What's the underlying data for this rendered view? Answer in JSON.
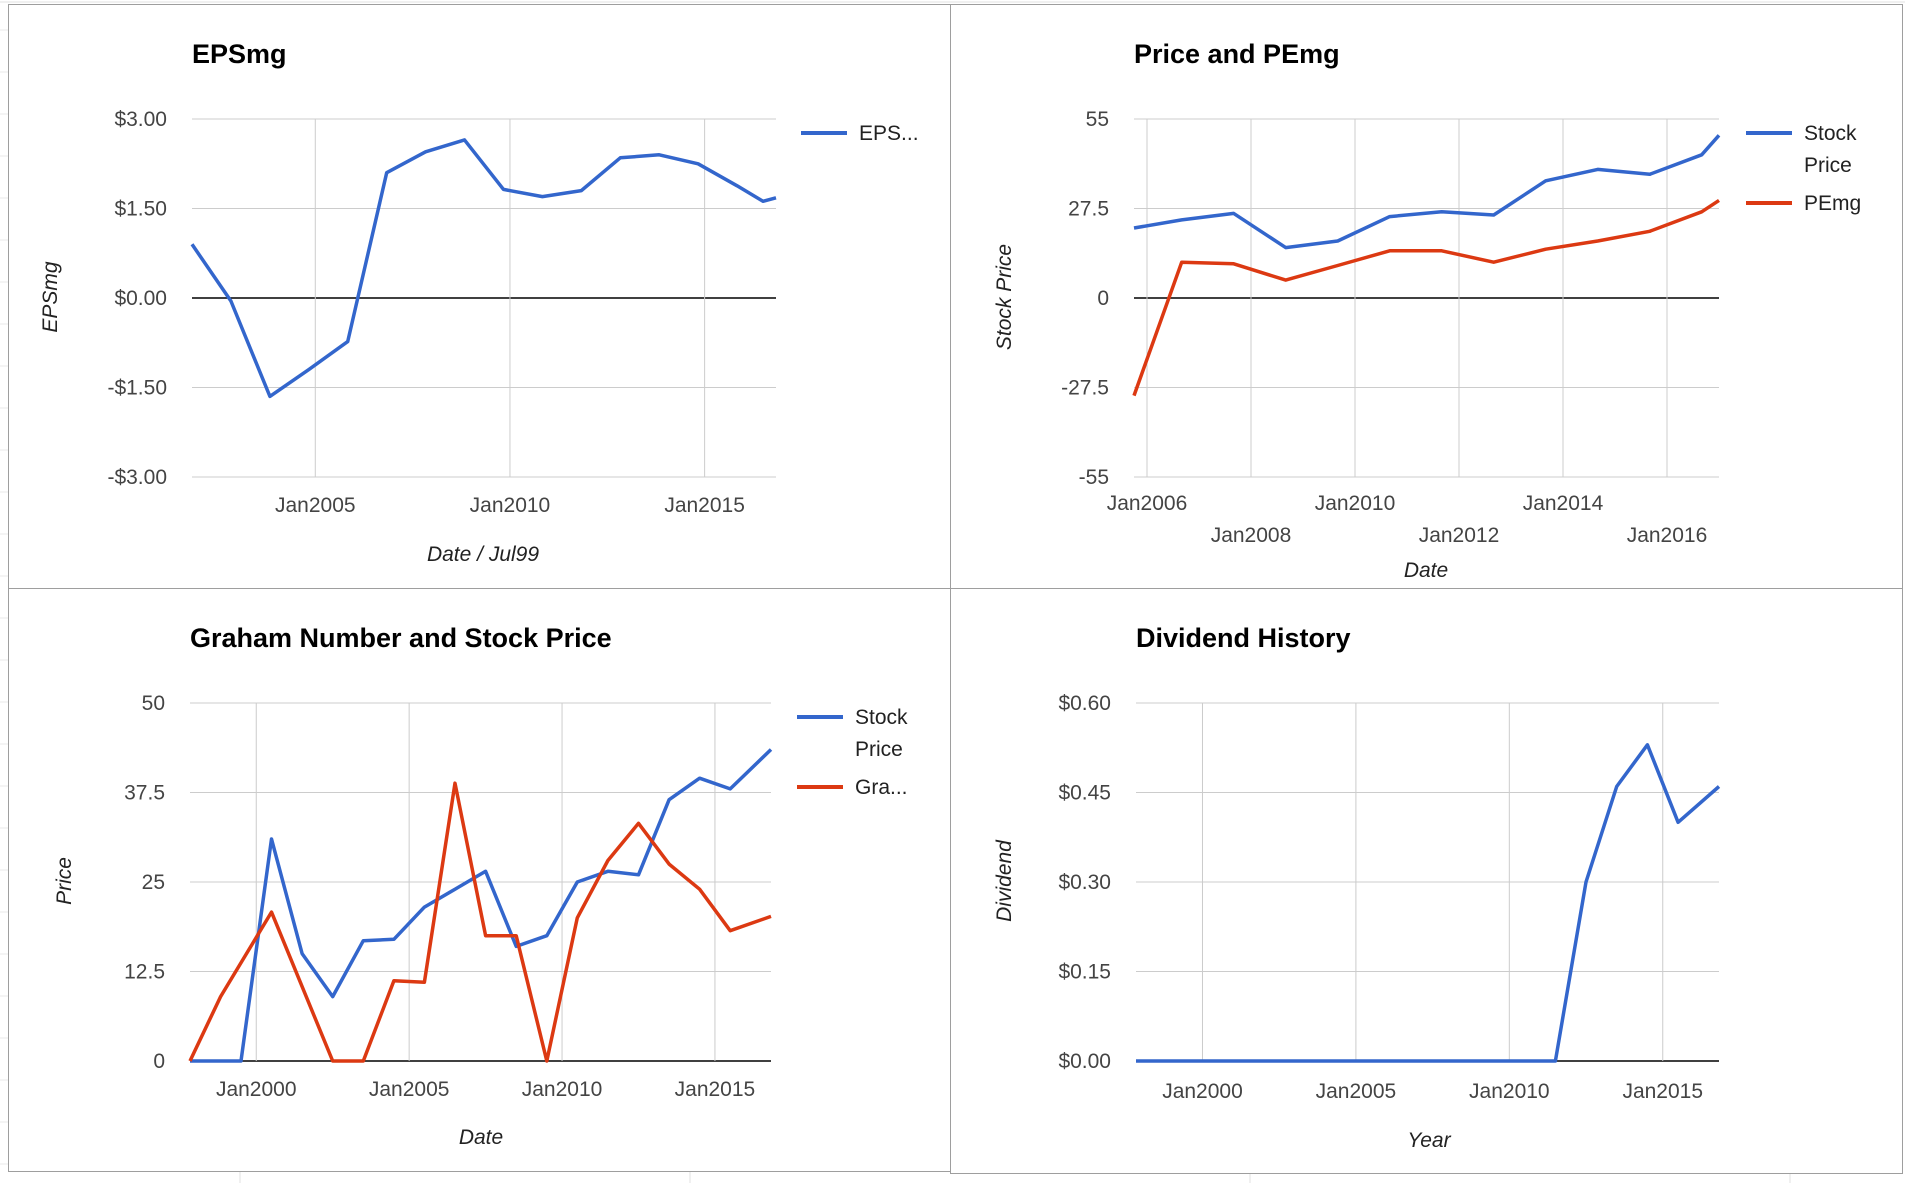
{
  "colors": {
    "blue": "#3366cc",
    "red": "#dc3912",
    "grid": "#cccccc",
    "zero": "#000000"
  },
  "chart_data": [
    {
      "type": "line",
      "title": "EPSmg",
      "xlabel": "Date / Jul99",
      "ylabel": "EPSmg",
      "x_ticks": [
        "Jan2005",
        "Jan2010",
        "Jan2015"
      ],
      "y_ticks": [
        "$3.00",
        "$1.50",
        "$0.00",
        "-$1.50",
        "-$3.00"
      ],
      "ylim": [
        -3,
        3
      ],
      "x_range": [
        "2001-11",
        "2016-11"
      ],
      "legend": "right",
      "series": [
        {
          "name": "EPS...",
          "color": "blue",
          "points": [
            [
              "2001-11",
              0.9
            ],
            [
              "2002-11",
              -0.05
            ],
            [
              "2003-11",
              -1.65
            ],
            [
              "2004-11",
              -1.2
            ],
            [
              "2005-11",
              -0.73
            ],
            [
              "2006-11",
              2.1
            ],
            [
              "2007-11",
              2.45
            ],
            [
              "2008-11",
              2.65
            ],
            [
              "2009-11",
              1.82
            ],
            [
              "2010-11",
              1.7
            ],
            [
              "2011-11",
              1.8
            ],
            [
              "2012-11",
              2.35
            ],
            [
              "2013-11",
              2.4
            ],
            [
              "2014-11",
              2.25
            ],
            [
              "2015-11",
              1.88
            ],
            [
              "2016-07",
              1.62
            ],
            [
              "2016-11",
              1.68
            ]
          ]
        }
      ]
    },
    {
      "type": "line",
      "title": "Price and PEmg",
      "xlabel": "Date",
      "ylabel": "Stock Price",
      "x_ticks": [
        "Jan2006",
        "Jan2008",
        "Jan2010",
        "Jan2012",
        "Jan2014",
        "Jan2016"
      ],
      "y_ticks": [
        "55",
        "27.5",
        "0",
        "-27.5",
        "-55"
      ],
      "ylim": [
        -55,
        55
      ],
      "x_range": [
        "2005-10",
        "2017-01"
      ],
      "legend": "right",
      "series": [
        {
          "name": "Stock Price",
          "color": "blue",
          "points": [
            [
              "2005-10",
              21.5
            ],
            [
              "2006-09",
              24.0
            ],
            [
              "2007-09",
              26.0
            ],
            [
              "2008-09",
              15.5
            ],
            [
              "2009-09",
              17.5
            ],
            [
              "2010-09",
              25.0
            ],
            [
              "2011-09",
              26.5
            ],
            [
              "2012-09",
              25.5
            ],
            [
              "2013-09",
              36.0
            ],
            [
              "2014-09",
              39.5
            ],
            [
              "2015-09",
              38.0
            ],
            [
              "2016-09",
              44.0
            ],
            [
              "2017-01",
              50.0
            ]
          ]
        },
        {
          "name": "PEmg",
          "color": "red",
          "points": [
            [
              "2005-10",
              -30.0
            ],
            [
              "2006-09",
              11.0
            ],
            [
              "2007-09",
              10.5
            ],
            [
              "2008-09",
              5.5
            ],
            [
              "2009-09",
              10.0
            ],
            [
              "2010-09",
              14.5
            ],
            [
              "2011-09",
              14.5
            ],
            [
              "2012-09",
              11.0
            ],
            [
              "2013-09",
              15.0
            ],
            [
              "2014-09",
              17.5
            ],
            [
              "2015-09",
              20.5
            ],
            [
              "2016-09",
              26.5
            ],
            [
              "2017-01",
              30.0
            ]
          ]
        }
      ]
    },
    {
      "type": "line",
      "title": "Graham Number and Stock Price",
      "xlabel": "Date",
      "ylabel": "Price",
      "x_ticks": [
        "Jan2000",
        "Jan2005",
        "Jan2010",
        "Jan2015"
      ],
      "y_ticks": [
        "50",
        "37.5",
        "25",
        "12.5",
        "0"
      ],
      "ylim": [
        0,
        50
      ],
      "x_range": [
        "1997-11",
        "2016-11"
      ],
      "legend": "right",
      "series": [
        {
          "name": "Stock Price",
          "color": "blue",
          "points": [
            [
              "1997-11",
              0
            ],
            [
              "1998-11",
              0
            ],
            [
              "1999-07",
              0
            ],
            [
              "2000-07",
              31.0
            ],
            [
              "2001-07",
              15.0
            ],
            [
              "2002-07",
              9.0
            ],
            [
              "2003-07",
              16.8
            ],
            [
              "2004-07",
              17.0
            ],
            [
              "2005-07",
              21.5
            ],
            [
              "2006-07",
              24.0
            ],
            [
              "2007-07",
              26.5
            ],
            [
              "2008-07",
              16.0
            ],
            [
              "2009-07",
              17.5
            ],
            [
              "2010-07",
              25.0
            ],
            [
              "2011-07",
              26.5
            ],
            [
              "2012-07",
              26.0
            ],
            [
              "2013-07",
              36.5
            ],
            [
              "2014-07",
              39.5
            ],
            [
              "2015-07",
              38.0
            ],
            [
              "2016-11",
              43.5
            ]
          ]
        },
        {
          "name": "Gra...",
          "color": "red",
          "points": [
            [
              "1997-11",
              0
            ],
            [
              "1998-11",
              9.0
            ],
            [
              "2000-07",
              20.8
            ],
            [
              "2002-07",
              0
            ],
            [
              "2003-07",
              0
            ],
            [
              "2004-07",
              11.2
            ],
            [
              "2005-07",
              11.0
            ],
            [
              "2006-07",
              38.8
            ],
            [
              "2007-07",
              17.5
            ],
            [
              "2008-07",
              17.5
            ],
            [
              "2009-07",
              0
            ],
            [
              "2010-07",
              20.0
            ],
            [
              "2011-07",
              28.0
            ],
            [
              "2012-07",
              33.2
            ],
            [
              "2013-07",
              27.5
            ],
            [
              "2014-07",
              24.0
            ],
            [
              "2015-07",
              18.2
            ],
            [
              "2016-11",
              20.2
            ]
          ]
        }
      ]
    },
    {
      "type": "line",
      "title": "Dividend History",
      "xlabel": "Year",
      "ylabel": "Dividend",
      "x_ticks": [
        "Jan2000",
        "Jan2005",
        "Jan2010",
        "Jan2015"
      ],
      "y_ticks": [
        "$0.60",
        "$0.45",
        "$0.30",
        "$0.15",
        "$0.00"
      ],
      "ylim": [
        0,
        0.6
      ],
      "x_range": [
        "1997-11",
        "2016-11"
      ],
      "legend": "none",
      "series": [
        {
          "name": "",
          "color": "blue",
          "points": [
            [
              "1997-11",
              0
            ],
            [
              "2002-01",
              0
            ],
            [
              "2007-01",
              0
            ],
            [
              "2011-07",
              0
            ],
            [
              "2012-07",
              0.3
            ],
            [
              "2013-07",
              0.46
            ],
            [
              "2014-07",
              0.53
            ],
            [
              "2015-07",
              0.4
            ],
            [
              "2016-11",
              0.46
            ]
          ]
        }
      ]
    }
  ]
}
